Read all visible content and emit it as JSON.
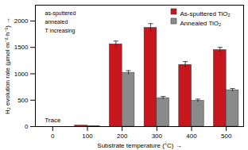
{
  "chart_data": {
    "type": "bar",
    "x_label": "Substrate temperature (°C)",
    "y_label": "H₂ evolution rate (μmol·m⁻²·h⁻¹)",
    "categories": [
      0,
      100,
      200,
      300,
      400,
      500
    ],
    "series": [
      {
        "name": "As-sputtered TiO₂",
        "color": "#c8161d",
        "values": [
          0,
          20,
          1560,
          1870,
          1170,
          1450
        ],
        "errors": [
          0,
          0,
          60,
          80,
          60,
          50
        ]
      },
      {
        "name": "Annealed TiO₂",
        "color": "#8a8a8a",
        "values": [
          0,
          10,
          1020,
          540,
          490,
          690
        ],
        "errors": [
          0,
          0,
          40,
          30,
          30,
          30
        ]
      }
    ],
    "ylim": [
      0,
      2300
    ],
    "yticks": [
      0,
      500,
      1000,
      1500,
      2000
    ],
    "legend": "top-right",
    "annotations": [
      {
        "text": "Trace",
        "x": 0
      },
      {
        "text": "as-sputtered"
      },
      {
        "text": "annealed"
      },
      {
        "text": "T increasing"
      }
    ]
  }
}
